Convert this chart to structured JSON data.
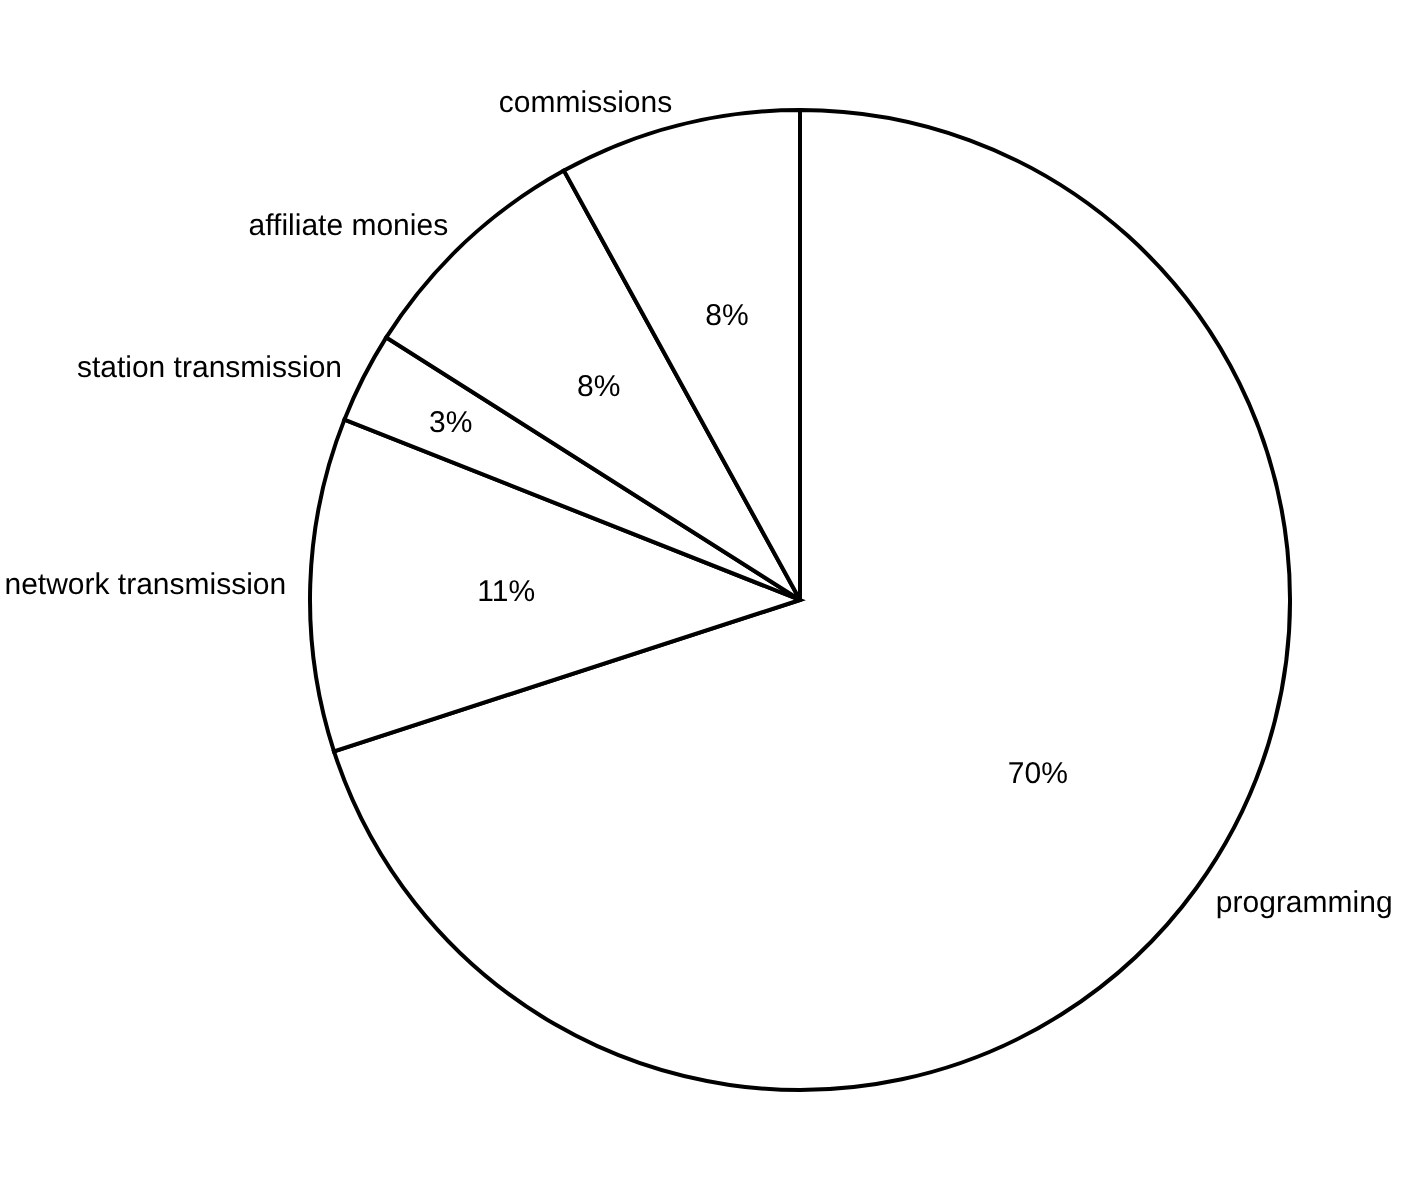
{
  "chart_data": {
    "type": "pie",
    "categories": [
      "programming",
      "network transmission",
      "station transmission",
      "affiliate monies",
      "commissions"
    ],
    "values": [
      70,
      11,
      3,
      8,
      8
    ],
    "value_labels": [
      "70%",
      "11%",
      "3%",
      "8%",
      "8%"
    ],
    "colors": [
      "#ffffff",
      "#ffffff",
      "#ffffff",
      "#ffffff",
      "#ffffff"
    ],
    "legend": false
  }
}
